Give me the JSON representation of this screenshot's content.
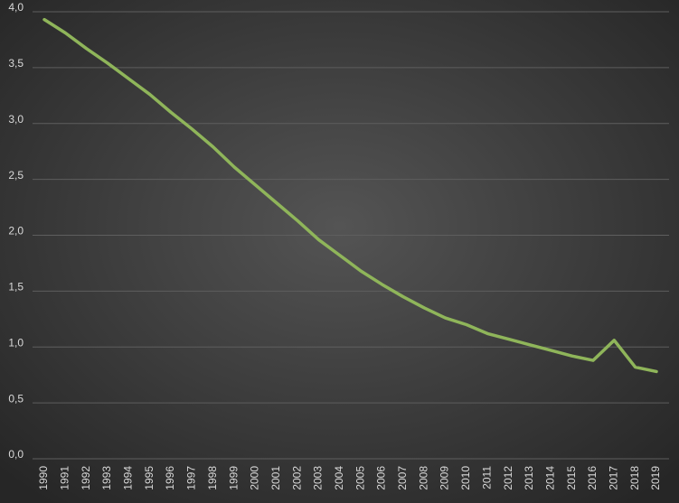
{
  "chart_data": {
    "type": "line",
    "categories": [
      "1990",
      "1991",
      "1992",
      "1993",
      "1994",
      "1995",
      "1996",
      "1997",
      "1998",
      "1999",
      "2000",
      "2001",
      "2002",
      "2003",
      "2004",
      "2005",
      "2006",
      "2007",
      "2008",
      "2009",
      "2010",
      "2011",
      "2012",
      "2013",
      "2014",
      "2015",
      "2016",
      "2017",
      "2018",
      "2019"
    ],
    "values": [
      3.93,
      3.81,
      3.67,
      3.54,
      3.4,
      3.26,
      3.1,
      2.95,
      2.79,
      2.61,
      2.45,
      2.29,
      2.13,
      1.96,
      1.82,
      1.68,
      1.56,
      1.45,
      1.35,
      1.26,
      1.2,
      1.12,
      1.07,
      1.02,
      0.97,
      0.92,
      0.88,
      1.06,
      0.82,
      0.78
    ],
    "color": "#8fb55a",
    "ylim": [
      0,
      4
    ],
    "yticks": [
      {
        "value": 0,
        "label": "0,0"
      },
      {
        "value": 0.5,
        "label": "0,5"
      },
      {
        "value": 1,
        "label": "1,0"
      },
      {
        "value": 1.5,
        "label": "1,5"
      },
      {
        "value": 2,
        "label": "2,0"
      },
      {
        "value": 2.5,
        "label": "2,5"
      },
      {
        "value": 3,
        "label": "3,0"
      },
      {
        "value": 3.5,
        "label": "3,5"
      },
      {
        "value": 4,
        "label": "4,0"
      }
    ],
    "grid": true
  }
}
